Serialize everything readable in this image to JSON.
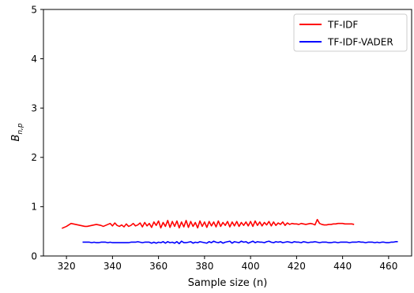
{
  "chart_data": {
    "type": "line",
    "title": "",
    "xlabel": "Sample size (n)",
    "ylabel": "B",
    "ylabel_subscript": "n,p",
    "xlim": [
      310,
      470
    ],
    "ylim": [
      0,
      5
    ],
    "xticks": [
      320,
      340,
      360,
      380,
      400,
      420,
      440,
      460
    ],
    "yticks": [
      0,
      1,
      2,
      3,
      4,
      5
    ],
    "grid": false,
    "legend_position": "upper right",
    "series": [
      {
        "name": "TF-IDF",
        "color": "#ff0000",
        "x_start": 318,
        "x_end": 445,
        "x_step": 1,
        "y": [
          0.56,
          0.58,
          0.6,
          0.63,
          0.66,
          0.65,
          0.64,
          0.63,
          0.62,
          0.61,
          0.6,
          0.6,
          0.61,
          0.62,
          0.63,
          0.64,
          0.63,
          0.62,
          0.6,
          0.62,
          0.64,
          0.66,
          0.61,
          0.67,
          0.62,
          0.6,
          0.63,
          0.59,
          0.65,
          0.6,
          0.62,
          0.66,
          0.61,
          0.63,
          0.67,
          0.59,
          0.68,
          0.61,
          0.66,
          0.58,
          0.69,
          0.62,
          0.71,
          0.57,
          0.68,
          0.6,
          0.72,
          0.58,
          0.7,
          0.6,
          0.71,
          0.57,
          0.69,
          0.59,
          0.72,
          0.58,
          0.7,
          0.6,
          0.68,
          0.57,
          0.71,
          0.6,
          0.69,
          0.58,
          0.7,
          0.61,
          0.69,
          0.59,
          0.71,
          0.6,
          0.68,
          0.62,
          0.7,
          0.59,
          0.69,
          0.61,
          0.7,
          0.6,
          0.68,
          0.62,
          0.69,
          0.61,
          0.7,
          0.6,
          0.71,
          0.62,
          0.69,
          0.61,
          0.68,
          0.63,
          0.7,
          0.61,
          0.69,
          0.62,
          0.67,
          0.64,
          0.69,
          0.62,
          0.67,
          0.64,
          0.66,
          0.65,
          0.65,
          0.64,
          0.66,
          0.65,
          0.64,
          0.65,
          0.66,
          0.65,
          0.63,
          0.74,
          0.66,
          0.64,
          0.63,
          0.63,
          0.64,
          0.64,
          0.65,
          0.65,
          0.66,
          0.66,
          0.66,
          0.65,
          0.65,
          0.65,
          0.65,
          0.64
        ]
      },
      {
        "name": "TF-IDF-VADER",
        "color": "#0000ff",
        "x_start": 327,
        "x_end": 464,
        "x_step": 1,
        "y": [
          0.28,
          0.28,
          0.28,
          0.28,
          0.27,
          0.28,
          0.27,
          0.27,
          0.28,
          0.28,
          0.28,
          0.27,
          0.28,
          0.27,
          0.27,
          0.27,
          0.27,
          0.27,
          0.27,
          0.27,
          0.27,
          0.28,
          0.28,
          0.28,
          0.29,
          0.28,
          0.27,
          0.28,
          0.28,
          0.28,
          0.26,
          0.28,
          0.26,
          0.28,
          0.27,
          0.29,
          0.26,
          0.29,
          0.27,
          0.28,
          0.26,
          0.29,
          0.25,
          0.3,
          0.27,
          0.27,
          0.28,
          0.29,
          0.26,
          0.28,
          0.27,
          0.29,
          0.28,
          0.27,
          0.26,
          0.29,
          0.27,
          0.3,
          0.28,
          0.27,
          0.29,
          0.26,
          0.28,
          0.29,
          0.3,
          0.26,
          0.29,
          0.28,
          0.27,
          0.3,
          0.28,
          0.29,
          0.26,
          0.28,
          0.3,
          0.27,
          0.29,
          0.28,
          0.28,
          0.27,
          0.29,
          0.3,
          0.28,
          0.27,
          0.29,
          0.28,
          0.29,
          0.27,
          0.28,
          0.29,
          0.28,
          0.27,
          0.29,
          0.28,
          0.28,
          0.27,
          0.29,
          0.28,
          0.27,
          0.28,
          0.28,
          0.29,
          0.28,
          0.27,
          0.28,
          0.28,
          0.28,
          0.27,
          0.27,
          0.28,
          0.28,
          0.27,
          0.28,
          0.28,
          0.28,
          0.28,
          0.27,
          0.28,
          0.28,
          0.28,
          0.29,
          0.28,
          0.28,
          0.27,
          0.28,
          0.28,
          0.28,
          0.27,
          0.28,
          0.27,
          0.28,
          0.28,
          0.27,
          0.27,
          0.28,
          0.28,
          0.29,
          0.29
        ]
      }
    ]
  }
}
